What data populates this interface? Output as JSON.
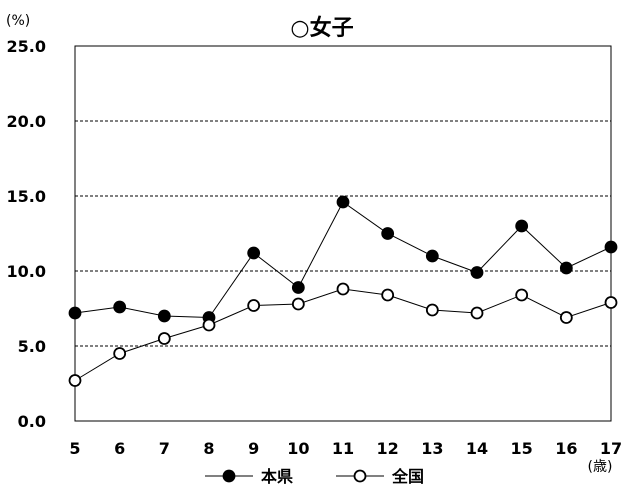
{
  "chart_data": {
    "type": "line",
    "title": "○女子",
    "ylabel": "(%)",
    "xlabel": "(歳)",
    "x": [
      "5",
      "6",
      "7",
      "8",
      "9",
      "10",
      "11",
      "12",
      "13",
      "14",
      "15",
      "16",
      "17"
    ],
    "ylim": [
      0,
      25
    ],
    "ytick_labels": [
      "0.0",
      "5.0",
      "10.0",
      "15.0",
      "20.0",
      "25.0"
    ],
    "ytick_values": [
      0,
      5,
      10,
      15,
      20,
      25
    ],
    "grid": "horizontal dashed",
    "legend_position": "bottom",
    "series": [
      {
        "name": "本県",
        "marker": "filled-circle",
        "color": "#000000",
        "values": [
          7.2,
          7.6,
          7.0,
          6.9,
          11.2,
          8.9,
          14.6,
          12.5,
          11.0,
          9.9,
          13.0,
          10.2,
          11.6
        ]
      },
      {
        "name": "全国",
        "marker": "open-circle",
        "color": "#000000",
        "values": [
          2.7,
          4.5,
          5.5,
          6.4,
          7.7,
          7.8,
          8.8,
          8.4,
          7.4,
          7.2,
          8.4,
          6.9,
          7.9
        ]
      }
    ]
  }
}
